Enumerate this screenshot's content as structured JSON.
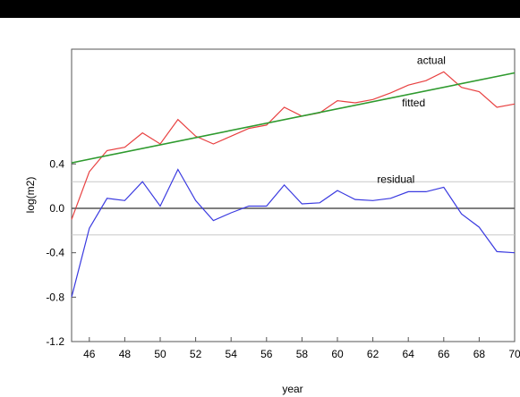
{
  "chart_data": {
    "type": "line",
    "title": "",
    "xlabel": "year",
    "ylabel": "log(m2)",
    "xlim": [
      45,
      70
    ],
    "ylim": [
      -1.2,
      1.8
    ],
    "x_ticks": [
      46,
      48,
      50,
      52,
      54,
      56,
      58,
      60,
      62,
      64,
      66,
      68,
      70
    ],
    "x_tick_labels": [
      "46",
      "48",
      "50",
      "52",
      "54",
      "56",
      "58",
      "60",
      "62",
      "64",
      "66",
      "68",
      "70"
    ],
    "y_ticks": [
      -1.2,
      -0.8,
      -0.4,
      0.0,
      0.4
    ],
    "y_tick_labels": [
      "-1.2",
      "-0.8",
      "-0.4",
      "0.0",
      "0.4"
    ],
    "reference_lines": [
      {
        "y": 0.0,
        "color": "#555555"
      },
      {
        "y": 0.24,
        "color": "#c8c8c8"
      },
      {
        "y": -0.24,
        "color": "#c8c8c8"
      }
    ],
    "series": [
      {
        "name": "actual",
        "color": "#e84040",
        "x": [
          45,
          46,
          47,
          48,
          49,
          50,
          51,
          52,
          53,
          54,
          55,
          56,
          57,
          58,
          59,
          60,
          61,
          62,
          63,
          64,
          65,
          66,
          67,
          68,
          69,
          70
        ],
        "y": [
          -0.1,
          0.33,
          0.52,
          0.55,
          0.68,
          0.58,
          0.8,
          0.65,
          0.58,
          0.65,
          0.72,
          0.75,
          0.91,
          0.83,
          0.86,
          0.97,
          0.95,
          0.98,
          1.04,
          1.11,
          1.15,
          1.23,
          1.09,
          1.05,
          0.91,
          0.94
        ]
      },
      {
        "name": "fitted",
        "color": "#2e9a2e",
        "x": [
          45,
          70
        ],
        "y": [
          0.41,
          1.22
        ]
      },
      {
        "name": "residual",
        "color": "#3a3ae0",
        "x": [
          45,
          46,
          47,
          48,
          49,
          50,
          51,
          52,
          53,
          54,
          55,
          56,
          57,
          58,
          59,
          60,
          61,
          62,
          63,
          64,
          65,
          66,
          67,
          68,
          69,
          70
        ],
        "y": [
          -0.8,
          -0.18,
          0.09,
          0.07,
          0.24,
          0.02,
          0.35,
          0.07,
          -0.11,
          -0.04,
          0.02,
          0.02,
          0.21,
          0.04,
          0.05,
          0.16,
          0.08,
          0.07,
          0.09,
          0.15,
          0.15,
          0.19,
          -0.05,
          -0.17,
          -0.39,
          -0.4
        ]
      }
    ],
    "annotations": [
      {
        "text": "actual",
        "x": 65.3,
        "y": 1.3
      },
      {
        "text": "fitted",
        "x": 64.3,
        "y": 0.92
      },
      {
        "text": "residual",
        "x": 63.3,
        "y": 0.23
      }
    ],
    "grid": false,
    "legend": "none"
  }
}
